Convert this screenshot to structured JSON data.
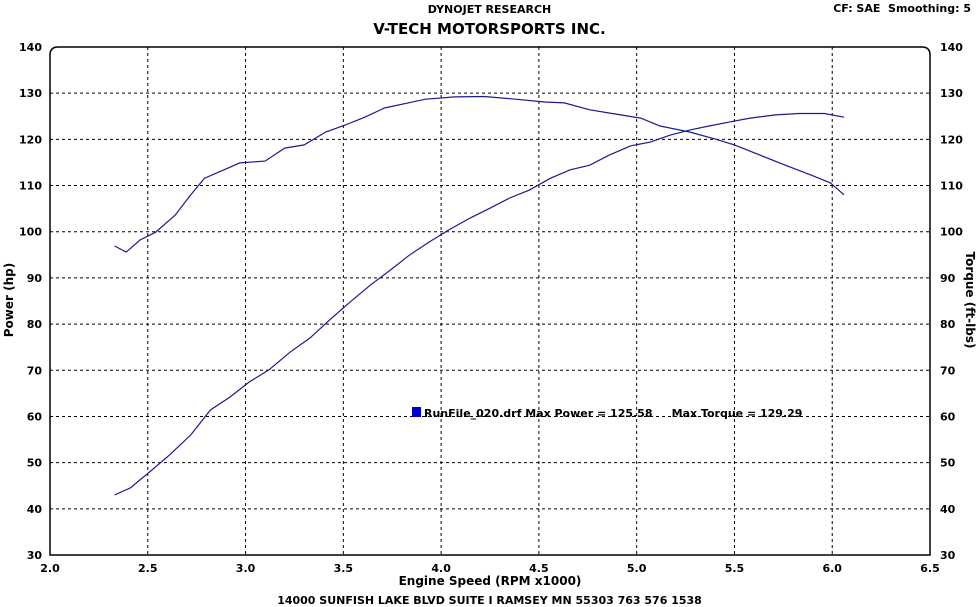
{
  "header": {
    "company": "DYNOJET RESEARCH",
    "shop": "V-TECH MOTORSPORTS INC.",
    "settings": "CF: SAE  Smoothing: 5",
    "footer": "14000 SUNFISH LAKE BLVD SUITE I RAMSEY MN 55303 763 576 1538"
  },
  "chart_data": {
    "type": "line",
    "title": "V-TECH MOTORSPORTS INC.",
    "xlabel": "Engine Speed (RPM x1000)",
    "ylabel": "Power (hp)",
    "y2label": "Torque (ft-lbs)",
    "xlim": [
      2.0,
      6.5
    ],
    "ylim": [
      30,
      140
    ],
    "y2lim": [
      30,
      140
    ],
    "xticks": [
      "2.0",
      "2.5",
      "3.0",
      "3.5",
      "4.0",
      "4.5",
      "5.0",
      "5.5",
      "6.0",
      "6.5"
    ],
    "yticks": [
      "30",
      "40",
      "50",
      "60",
      "70",
      "80",
      "90",
      "100",
      "110",
      "120",
      "130",
      "140"
    ],
    "grid": true,
    "line_color": "#1a1a8c",
    "legend": {
      "marker_color": "#0000cc",
      "text": "RunFile_020.drf Max Power = 125.58     Max Torque = 129.29"
    },
    "series": [
      {
        "name": "Power",
        "x": [
          2.33,
          2.41,
          2.51,
          2.61,
          2.72,
          2.82,
          2.92,
          3.02,
          3.12,
          3.23,
          3.33,
          3.43,
          3.53,
          3.64,
          3.74,
          3.84,
          3.94,
          4.04,
          4.15,
          4.25,
          4.35,
          4.45,
          4.56,
          4.66,
          4.76,
          4.86,
          4.97,
          5.07,
          5.17,
          5.27,
          5.37,
          5.48,
          5.58,
          5.71,
          5.83,
          5.96,
          6.06
        ],
        "y": [
          43,
          44.5,
          48,
          51.6,
          56,
          61.4,
          64.2,
          67.5,
          70.1,
          74,
          77,
          80.9,
          84.6,
          88.5,
          91.7,
          95,
          97.8,
          100.4,
          103,
          105.1,
          107.3,
          109,
          111.6,
          113.4,
          114.4,
          116.6,
          118.6,
          119.4,
          120.9,
          122,
          122.9,
          123.8,
          124.6,
          125.3,
          125.6,
          125.6,
          124.8
        ]
      },
      {
        "name": "Torque",
        "x": [
          2.33,
          2.39,
          2.46,
          2.54,
          2.64,
          2.72,
          2.79,
          2.89,
          2.97,
          3.1,
          3.2,
          3.3,
          3.41,
          3.51,
          3.61,
          3.71,
          3.81,
          3.92,
          4.07,
          4.22,
          4.38,
          4.53,
          4.63,
          4.76,
          4.89,
          5.02,
          5.12,
          5.27,
          5.4,
          5.5,
          5.63,
          5.76,
          5.89,
          5.99,
          6.06
        ],
        "y": [
          96.9,
          95.6,
          98.2,
          99.9,
          103.6,
          108,
          111.6,
          113.4,
          114.9,
          115.3,
          118.1,
          118.8,
          121.6,
          123.1,
          124.8,
          126.8,
          127.7,
          128.7,
          129.2,
          129.29,
          128.7,
          128.1,
          127.9,
          126.4,
          125.5,
          124.6,
          122.9,
          121.6,
          120.1,
          118.8,
          116.6,
          114.4,
          112.3,
          110.6,
          108
        ]
      }
    ]
  }
}
